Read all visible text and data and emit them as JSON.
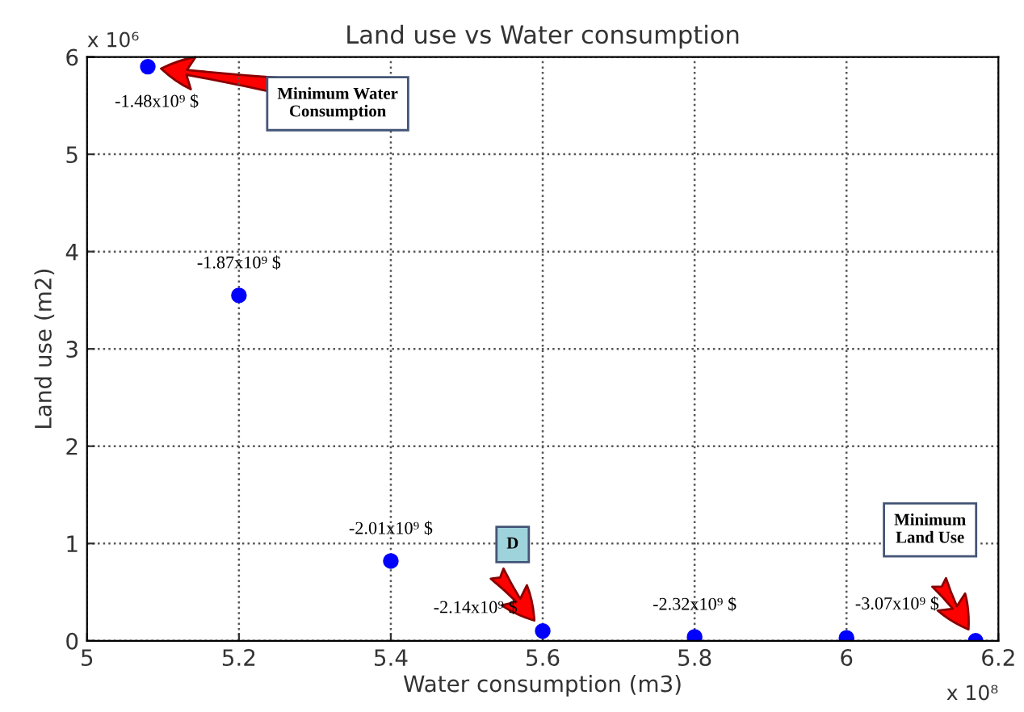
{
  "chart_data": {
    "type": "scatter",
    "title": "Land use vs Water consumption",
    "xlabel": "Water consumption (m3)",
    "ylabel": "Land use (m2)",
    "x": [
      5.08,
      5.2,
      5.4,
      5.6,
      5.8,
      6.0,
      6.17
    ],
    "series": [
      {
        "color": "#0000ff",
        "values": [
          5.9,
          3.55,
          0.82,
          0.1,
          0.04,
          0.03,
          0.0
        ],
        "value_labels": [
          "-1.48x10⁹ $",
          "-1.87x10⁹ $",
          "-2.01x10⁹ $",
          "-2.14x10⁹ $",
          "-2.32x10⁹ $",
          null,
          "-3.07x10⁹ $"
        ]
      }
    ],
    "annotations": [
      "Minimum Water\nConsumption",
      "D",
      "Minimum\nLand Use",
      "x 10⁶",
      "x 10⁸"
    ],
    "xlim": [
      5,
      6.2
    ],
    "xticks": [
      5,
      5.2,
      5.4,
      5.6,
      5.8,
      6,
      6.2
    ],
    "ylim": [
      0,
      6
    ],
    "yticks": [
      0,
      1,
      2,
      3,
      4,
      5,
      6
    ],
    "grid": true,
    "marker": "circle"
  }
}
